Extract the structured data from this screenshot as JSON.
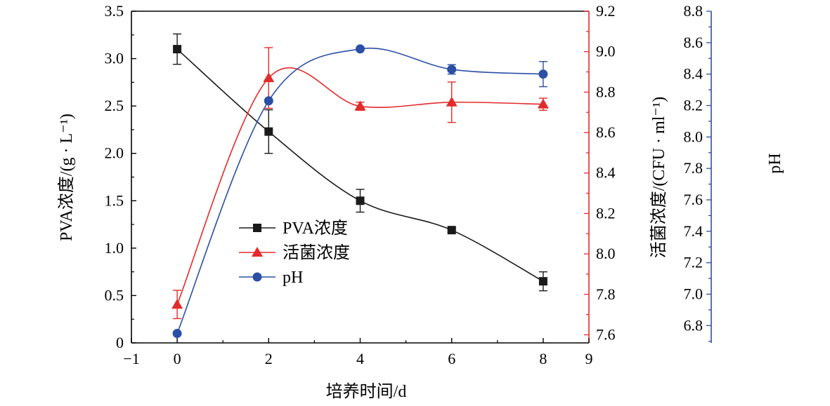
{
  "chart_data": {
    "type": "line",
    "title": "",
    "xlabel": "培养时间/d",
    "xlim": [
      -1,
      9
    ],
    "x_ticks": [
      -1,
      0,
      2,
      4,
      6,
      8,
      9
    ],
    "x_tick_labels": [
      "−1",
      "0",
      "2",
      "4",
      "6",
      "8",
      "9"
    ],
    "axes": {
      "left": {
        "label": "PVA浓度/(g · L⁻¹)",
        "ylim": [
          0,
          3.5
        ],
        "ticks": [
          0,
          0.5,
          1.0,
          1.5,
          2.0,
          2.5,
          3.0,
          3.5
        ],
        "tick_labels": [
          "0",
          "0.5",
          "1.0",
          "1.5",
          "2.0",
          "2.5",
          "3.0",
          "3.5"
        ],
        "color": "#000000"
      },
      "right1": {
        "label": "活菌浓度/(CFU · ml⁻¹)",
        "ylim": [
          7.56,
          9.2
        ],
        "ticks": [
          7.6,
          7.8,
          8.0,
          8.2,
          8.4,
          8.6,
          8.8,
          9.0,
          9.2
        ],
        "tick_labels": [
          "7.6",
          "7.8",
          "8.0",
          "8.2",
          "8.4",
          "8.6",
          "8.8",
          "9.0",
          "9.2"
        ],
        "color": "#e32b2b"
      },
      "right2": {
        "label": "pH",
        "ylim": [
          6.69,
          8.8
        ],
        "ticks": [
          6.8,
          7.0,
          7.2,
          7.4,
          7.6,
          7.8,
          8.0,
          8.2,
          8.4,
          8.6,
          8.8
        ],
        "tick_labels": [
          "6.8",
          "7.0",
          "7.2",
          "7.4",
          "7.6",
          "7.8",
          "8.0",
          "8.2",
          "8.4",
          "8.6",
          "8.8"
        ],
        "color": "#2b4fa5"
      }
    },
    "series": [
      {
        "name": "PVA浓度",
        "axis": "left",
        "marker": "square",
        "color": "#1a1a1a",
        "x": [
          0,
          2,
          4,
          6,
          8
        ],
        "y": [
          3.1,
          2.23,
          1.5,
          1.19,
          0.65
        ],
        "err": [
          0.16,
          0.23,
          0.12,
          0.02,
          0.1
        ]
      },
      {
        "name": "活菌浓度",
        "axis": "right1",
        "marker": "triangle",
        "color": "#e32b2b",
        "x": [
          0,
          2,
          4,
          6,
          8
        ],
        "y": [
          7.75,
          8.87,
          8.73,
          8.75,
          8.74
        ],
        "err": [
          0.07,
          0.15,
          0.02,
          0.1,
          0.03
        ]
      },
      {
        "name": "pH",
        "axis": "right2",
        "marker": "circle",
        "color": "#2b4fa5",
        "x": [
          0,
          2,
          4,
          6,
          8
        ],
        "y": [
          6.75,
          8.23,
          8.56,
          8.43,
          8.4
        ],
        "err": [
          0.0,
          0.0,
          0.0,
          0.03,
          0.08
        ]
      }
    ],
    "legend": {
      "position": "center-left",
      "entries": [
        "PVA浓度",
        "活菌浓度",
        "pH"
      ]
    },
    "grid": false
  }
}
